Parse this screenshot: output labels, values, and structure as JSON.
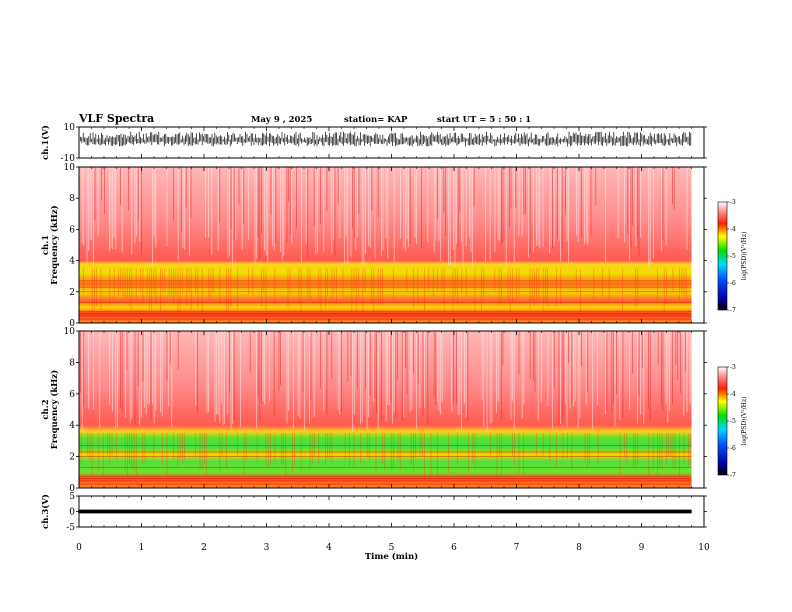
{
  "header": {
    "title": "VLF Spectra",
    "date": "May 9 , 2025",
    "station": "station= KAP",
    "start": "start  UT =   5 : 50 : 1"
  },
  "chart_data": [
    {
      "type": "line",
      "panel": "ch.1 waveform",
      "ylabel": "ch.1(V)",
      "ylim": [
        -10,
        10
      ],
      "y_ticks": [
        "10",
        "-10"
      ],
      "xlim": [
        0,
        10
      ],
      "series": [
        {
          "x": [
            0,
            9.8
          ],
          "min": [
            -2.5,
            -2.5
          ],
          "max": [
            7,
            7
          ]
        }
      ]
    },
    {
      "type": "heatmap",
      "panel": "ch.1 spectrogram",
      "ylabel": "ch.1\nFrequency (kHz)",
      "ylim": [
        0,
        10
      ],
      "y_ticks": [
        "0",
        "2",
        "4",
        "6",
        "8",
        "10"
      ],
      "xlim": [
        0,
        10
      ],
      "data_end_min": 9.8,
      "bands_kHz": [
        {
          "from": 0,
          "to": 0.5,
          "level": "yellow-red"
        },
        {
          "from": 0.5,
          "to": 3.6,
          "level": "yellow-green"
        },
        {
          "from": 3.6,
          "to": 10,
          "level": "red"
        }
      ],
      "colorbar": {
        "label": "log(PSD)(V²/Hz)",
        "range": [
          -7,
          -3
        ],
        "ticks": [
          "-3",
          "-4",
          "-5",
          "-6",
          "-7"
        ]
      }
    },
    {
      "type": "heatmap",
      "panel": "ch.2 spectrogram",
      "ylabel": "ch.2\nFrequency (kHz)",
      "ylim": [
        0,
        10
      ],
      "y_ticks": [
        "0",
        "2",
        "4",
        "6",
        "8",
        "10"
      ],
      "xlim": [
        0,
        10
      ],
      "data_end_min": 9.8,
      "bands_kHz": [
        {
          "from": 0,
          "to": 0.5,
          "level": "yellow-red"
        },
        {
          "from": 0.5,
          "to": 3.5,
          "level": "green"
        },
        {
          "from": 3.5,
          "to": 10,
          "level": "red"
        }
      ],
      "colorbar": {
        "label": "log(PSD)(V²/Hz)",
        "range": [
          -7,
          -3
        ],
        "ticks": [
          "-3",
          "-4",
          "-5",
          "-6",
          "-7"
        ]
      }
    },
    {
      "type": "line",
      "panel": "ch.3 waveform",
      "ylabel": "ch.3(V)",
      "ylim": [
        -5,
        5
      ],
      "y_ticks": [
        "5",
        "0",
        "-5"
      ],
      "xlim": [
        0,
        10
      ],
      "series": [
        {
          "x": [
            0,
            9.8
          ],
          "min": [
            -0.6,
            -0.6
          ],
          "max": [
            0.6,
            0.6
          ]
        }
      ],
      "xlabel": "Time (min)",
      "x_ticks": [
        "0",
        "1",
        "2",
        "3",
        "4",
        "5",
        "6",
        "7",
        "8",
        "9",
        "10"
      ]
    }
  ]
}
